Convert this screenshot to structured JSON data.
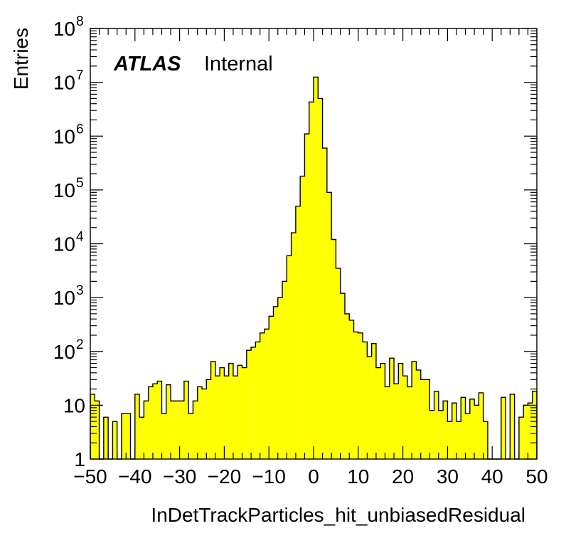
{
  "chart_data": {
    "type": "bar",
    "xlabel": "InDetTrackParticles_hit_unbiasedResidual",
    "ylabel": "Entries",
    "label_bold": "ATLAS",
    "label_normal": "Internal",
    "xlim": [
      -50,
      50
    ],
    "ylim": [
      1,
      100000000
    ],
    "yscale": "log",
    "fill_color": "#ffff00",
    "line_color": "#000000",
    "bin_width": 1,
    "x_ticks": [
      -50,
      -40,
      -30,
      -20,
      -10,
      0,
      10,
      20,
      30,
      40,
      50
    ],
    "x_tick_labels": [
      "−50",
      "−40",
      "−30",
      "−20",
      "−10",
      "0",
      "10",
      "20",
      "30",
      "40",
      "50"
    ],
    "y_ticks": [
      {
        "value": 1,
        "base": "1",
        "exp": ""
      },
      {
        "value": 10,
        "base": "10",
        "exp": ""
      },
      {
        "value": 100,
        "base": "10",
        "exp": "2"
      },
      {
        "value": 1000,
        "base": "10",
        "exp": "3"
      },
      {
        "value": 10000,
        "base": "10",
        "exp": "4"
      },
      {
        "value": 100000,
        "base": "10",
        "exp": "5"
      },
      {
        "value": 1000000,
        "base": "10",
        "exp": "6"
      },
      {
        "value": 10000000,
        "base": "10",
        "exp": "7"
      },
      {
        "value": 100000000,
        "base": "10",
        "exp": "8"
      }
    ],
    "bins": [
      -50,
      -49,
      -48,
      -47,
      -46,
      -45,
      -44,
      -43,
      -42,
      -41,
      -40,
      -39,
      -38,
      -37,
      -36,
      -35,
      -34,
      -33,
      -32,
      -31,
      -30,
      -29,
      -28,
      -27,
      -26,
      -25,
      -24,
      -23,
      -22,
      -21,
      -20,
      -19,
      -18,
      -17,
      -16,
      -15,
      -14,
      -13,
      -12,
      -11,
      -10,
      -9,
      -8,
      -7,
      -6,
      -5,
      -4,
      -3,
      -2,
      -1,
      0,
      1,
      2,
      3,
      4,
      5,
      6,
      7,
      8,
      9,
      10,
      11,
      12,
      13,
      14,
      15,
      16,
      17,
      18,
      19,
      20,
      21,
      22,
      23,
      24,
      25,
      26,
      27,
      28,
      29,
      30,
      31,
      32,
      33,
      34,
      35,
      36,
      37,
      38,
      39,
      40,
      41,
      42,
      43,
      44,
      45,
      46,
      47,
      48,
      49
    ],
    "values": [
      16,
      12,
      0,
      6,
      0,
      5,
      0,
      7,
      7,
      0,
      16,
      6,
      12,
      22,
      25,
      28,
      7,
      24,
      12,
      12,
      12,
      28,
      7,
      12,
      22,
      20,
      30,
      65,
      35,
      50,
      35,
      60,
      35,
      55,
      50,
      105,
      120,
      150,
      220,
      260,
      450,
      680,
      1000,
      2000,
      6000,
      16000,
      50000,
      180000,
      1100000,
      4300000,
      12500000,
      5000000,
      600000,
      90000,
      12000,
      3500,
      1200,
      500,
      380,
      230,
      220,
      150,
      80,
      140,
      50,
      60,
      22,
      75,
      25,
      60,
      35,
      22,
      65,
      45,
      30,
      30,
      8,
      18,
      8,
      12,
      5,
      11,
      5,
      14,
      7,
      13,
      10,
      17,
      5,
      0,
      0,
      0,
      14,
      0,
      16,
      0,
      6,
      10,
      11,
      18
    ]
  }
}
